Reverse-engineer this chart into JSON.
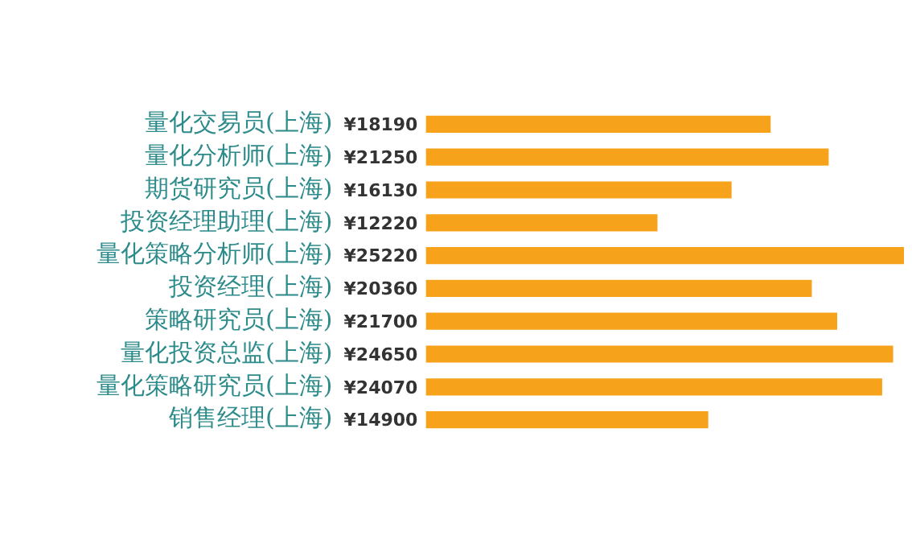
{
  "chart_data": {
    "type": "bar",
    "orientation": "horizontal",
    "categories": [
      "量化交易员(上海)",
      "量化分析师(上海)",
      "期货研究员(上海)",
      "投资经理助理(上海)",
      "量化策略分析师(上海)",
      "投资经理(上海)",
      "策略研究员(上海)",
      "量化投资总监(上海)",
      "量化策略研究员(上海)",
      "销售经理(上海)"
    ],
    "values": [
      18190,
      21250,
      16130,
      12220,
      25220,
      20360,
      21700,
      24650,
      24070,
      14900
    ],
    "value_labels": [
      "¥18190",
      "¥21250",
      "¥16130",
      "¥12220",
      "¥25220",
      "¥20360",
      "¥21700",
      "¥24650",
      "¥24070",
      "¥14900"
    ],
    "color": "#f7a21b",
    "grid": false,
    "legend": false
  }
}
